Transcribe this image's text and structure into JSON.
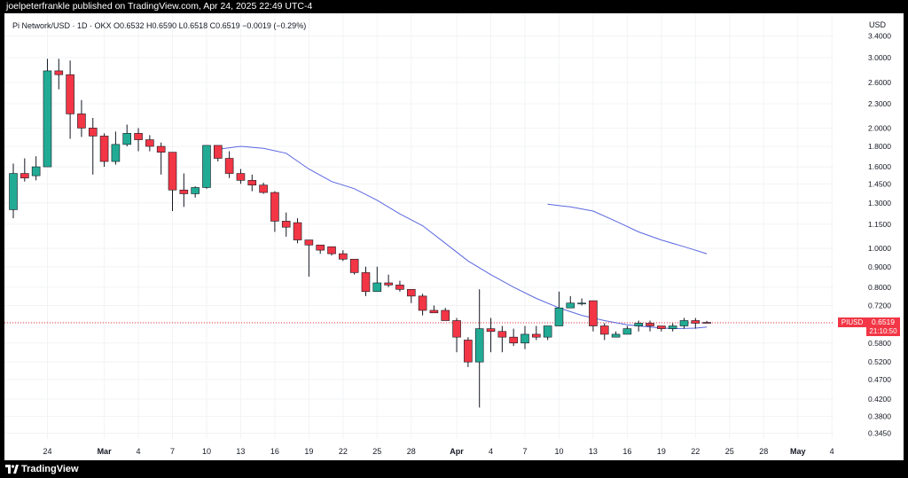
{
  "header": {
    "publisher_text": "joelpeterfrankle published on TradingView.com, Apr 24, 2025 22:49 UTC-4"
  },
  "footer": {
    "brand": "TradingView",
    "logo_icon": "tradingview-logo-icon"
  },
  "legend": {
    "text": "Pi Network/USD · 1D · OKX  O0.6532  H0.6590  L0.6518  C0.6519  −0.0019 (−0.29%)"
  },
  "price_axis": {
    "currency": "USD"
  },
  "badge": {
    "symbol": "PIUSD",
    "price": "0.6519",
    "countdown": "21:10:50"
  },
  "colors": {
    "up": "#22ab94",
    "down": "#f23645",
    "ma_line": "#5b67e0",
    "wick": "#131722"
  },
  "chart_data": {
    "type": "candlestick",
    "scale": "log",
    "ylim": [
      0.33,
      3.6
    ],
    "y_ticks": [
      "3.4000",
      "3.0000",
      "2.6000",
      "2.3000",
      "2.0000",
      "1.8000",
      "1.6000",
      "1.4500",
      "1.3000",
      "1.1500",
      "1.0000",
      "0.9000",
      "0.8000",
      "0.7200",
      "0.6500",
      "0.5800",
      "0.5200",
      "0.4700",
      "0.4200",
      "0.3800",
      "0.3450"
    ],
    "x_ticks": [
      "24",
      "Mar",
      "4",
      "7",
      "10",
      "13",
      "16",
      "19",
      "22",
      "25",
      "28",
      "Apr",
      "4",
      "7",
      "10",
      "13",
      "16",
      "19",
      "22",
      "25",
      "28",
      "May",
      "4"
    ],
    "start_date": "2025-02-21",
    "end_date": "2025-05-05",
    "candles": [
      {
        "date": "2025-02-21",
        "o": 1.25,
        "h": 1.63,
        "l": 1.19,
        "c": 1.54
      },
      {
        "date": "2025-02-22",
        "o": 1.54,
        "h": 1.68,
        "l": 1.47,
        "c": 1.5
      },
      {
        "date": "2025-02-23",
        "o": 1.52,
        "h": 1.7,
        "l": 1.48,
        "c": 1.6
      },
      {
        "date": "2025-02-24",
        "o": 1.6,
        "h": 2.98,
        "l": 1.6,
        "c": 2.78
      },
      {
        "date": "2025-02-25",
        "o": 2.78,
        "h": 2.98,
        "l": 2.5,
        "c": 2.72
      },
      {
        "date": "2025-02-26",
        "o": 2.72,
        "h": 2.95,
        "l": 1.88,
        "c": 2.17
      },
      {
        "date": "2025-02-27",
        "o": 2.17,
        "h": 2.35,
        "l": 1.9,
        "c": 2.0
      },
      {
        "date": "2025-02-28",
        "o": 2.0,
        "h": 2.12,
        "l": 1.53,
        "c": 1.91
      },
      {
        "date": "2025-03-01",
        "o": 1.91,
        "h": 1.94,
        "l": 1.6,
        "c": 1.65
      },
      {
        "date": "2025-03-02",
        "o": 1.65,
        "h": 1.96,
        "l": 1.62,
        "c": 1.82
      },
      {
        "date": "2025-03-03",
        "o": 1.82,
        "h": 2.04,
        "l": 1.8,
        "c": 1.94
      },
      {
        "date": "2025-03-04",
        "o": 1.94,
        "h": 2.0,
        "l": 1.75,
        "c": 1.87
      },
      {
        "date": "2025-03-05",
        "o": 1.87,
        "h": 1.92,
        "l": 1.75,
        "c": 1.8
      },
      {
        "date": "2025-03-06",
        "o": 1.8,
        "h": 1.84,
        "l": 1.53,
        "c": 1.74
      },
      {
        "date": "2025-03-07",
        "o": 1.74,
        "h": 1.74,
        "l": 1.24,
        "c": 1.4
      },
      {
        "date": "2025-03-08",
        "o": 1.4,
        "h": 1.54,
        "l": 1.27,
        "c": 1.37
      },
      {
        "date": "2025-03-09",
        "o": 1.37,
        "h": 1.43,
        "l": 1.34,
        "c": 1.42
      },
      {
        "date": "2025-03-10",
        "o": 1.42,
        "h": 1.81,
        "l": 1.41,
        "c": 1.81
      },
      {
        "date": "2025-03-11",
        "o": 1.81,
        "h": 1.81,
        "l": 1.65,
        "c": 1.68
      },
      {
        "date": "2025-03-12",
        "o": 1.68,
        "h": 1.75,
        "l": 1.5,
        "c": 1.54
      },
      {
        "date": "2025-03-13",
        "o": 1.54,
        "h": 1.58,
        "l": 1.45,
        "c": 1.48
      },
      {
        "date": "2025-03-14",
        "o": 1.48,
        "h": 1.53,
        "l": 1.39,
        "c": 1.44
      },
      {
        "date": "2025-03-15",
        "o": 1.44,
        "h": 1.46,
        "l": 1.37,
        "c": 1.38
      },
      {
        "date": "2025-03-16",
        "o": 1.38,
        "h": 1.39,
        "l": 1.1,
        "c": 1.17
      },
      {
        "date": "2025-03-17",
        "o": 1.17,
        "h": 1.23,
        "l": 1.07,
        "c": 1.13
      },
      {
        "date": "2025-03-18",
        "o": 1.16,
        "h": 1.19,
        "l": 1.03,
        "c": 1.05
      },
      {
        "date": "2025-03-19",
        "o": 1.05,
        "h": 1.05,
        "l": 0.85,
        "c": 1.02
      },
      {
        "date": "2025-03-20",
        "o": 1.02,
        "h": 1.02,
        "l": 0.97,
        "c": 0.99
      },
      {
        "date": "2025-03-21",
        "o": 1.01,
        "h": 1.01,
        "l": 0.96,
        "c": 0.97
      },
      {
        "date": "2025-03-22",
        "o": 0.97,
        "h": 0.99,
        "l": 0.93,
        "c": 0.94
      },
      {
        "date": "2025-03-23",
        "o": 0.94,
        "h": 0.94,
        "l": 0.86,
        "c": 0.87
      },
      {
        "date": "2025-03-24",
        "o": 0.87,
        "h": 0.9,
        "l": 0.76,
        "c": 0.78
      },
      {
        "date": "2025-03-25",
        "o": 0.78,
        "h": 0.9,
        "l": 0.78,
        "c": 0.82
      },
      {
        "date": "2025-03-26",
        "o": 0.82,
        "h": 0.86,
        "l": 0.8,
        "c": 0.81
      },
      {
        "date": "2025-03-27",
        "o": 0.81,
        "h": 0.83,
        "l": 0.78,
        "c": 0.79
      },
      {
        "date": "2025-03-28",
        "o": 0.79,
        "h": 0.79,
        "l": 0.73,
        "c": 0.76
      },
      {
        "date": "2025-03-29",
        "o": 0.76,
        "h": 0.77,
        "l": 0.68,
        "c": 0.7
      },
      {
        "date": "2025-03-30",
        "o": 0.7,
        "h": 0.72,
        "l": 0.69,
        "c": 0.69
      },
      {
        "date": "2025-03-31",
        "o": 0.7,
        "h": 0.71,
        "l": 0.66,
        "c": 0.66
      },
      {
        "date": "2025-04-01",
        "o": 0.66,
        "h": 0.67,
        "l": 0.55,
        "c": 0.6
      },
      {
        "date": "2025-04-02",
        "o": 0.59,
        "h": 0.6,
        "l": 0.505,
        "c": 0.52
      },
      {
        "date": "2025-04-03",
        "o": 0.52,
        "h": 0.79,
        "l": 0.4,
        "c": 0.63
      },
      {
        "date": "2025-04-04",
        "o": 0.63,
        "h": 0.67,
        "l": 0.55,
        "c": 0.62
      },
      {
        "date": "2025-04-05",
        "o": 0.62,
        "h": 0.64,
        "l": 0.55,
        "c": 0.6
      },
      {
        "date": "2025-04-06",
        "o": 0.6,
        "h": 0.63,
        "l": 0.57,
        "c": 0.58
      },
      {
        "date": "2025-04-07",
        "o": 0.58,
        "h": 0.64,
        "l": 0.56,
        "c": 0.61
      },
      {
        "date": "2025-04-08",
        "o": 0.61,
        "h": 0.64,
        "l": 0.59,
        "c": 0.6
      },
      {
        "date": "2025-04-09",
        "o": 0.6,
        "h": 0.64,
        "l": 0.59,
        "c": 0.64
      },
      {
        "date": "2025-04-10",
        "o": 0.64,
        "h": 0.78,
        "l": 0.64,
        "c": 0.71
      },
      {
        "date": "2025-04-11",
        "o": 0.71,
        "h": 0.76,
        "l": 0.71,
        "c": 0.73
      },
      {
        "date": "2025-04-12",
        "o": 0.73,
        "h": 0.75,
        "l": 0.72,
        "c": 0.73
      },
      {
        "date": "2025-04-13",
        "o": 0.74,
        "h": 0.74,
        "l": 0.62,
        "c": 0.64
      },
      {
        "date": "2025-04-14",
        "o": 0.64,
        "h": 0.65,
        "l": 0.59,
        "c": 0.61
      },
      {
        "date": "2025-04-15",
        "o": 0.6,
        "h": 0.62,
        "l": 0.6,
        "c": 0.61
      },
      {
        "date": "2025-04-16",
        "o": 0.61,
        "h": 0.64,
        "l": 0.61,
        "c": 0.63
      },
      {
        "date": "2025-04-17",
        "o": 0.64,
        "h": 0.66,
        "l": 0.62,
        "c": 0.65
      },
      {
        "date": "2025-04-18",
        "o": 0.65,
        "h": 0.66,
        "l": 0.62,
        "c": 0.64
      },
      {
        "date": "2025-04-19",
        "o": 0.64,
        "h": 0.64,
        "l": 0.62,
        "c": 0.63
      },
      {
        "date": "2025-04-20",
        "o": 0.63,
        "h": 0.65,
        "l": 0.62,
        "c": 0.64
      },
      {
        "date": "2025-04-21",
        "o": 0.64,
        "h": 0.67,
        "l": 0.63,
        "c": 0.66
      },
      {
        "date": "2025-04-22",
        "o": 0.66,
        "h": 0.67,
        "l": 0.63,
        "c": 0.65
      },
      {
        "date": "2025-04-23",
        "o": 0.6532,
        "h": 0.659,
        "l": 0.6518,
        "c": 0.6519
      }
    ],
    "ma_series": [
      {
        "date": "2025-03-11",
        "v": 1.77
      },
      {
        "date": "2025-03-13",
        "v": 1.8
      },
      {
        "date": "2025-03-15",
        "v": 1.78
      },
      {
        "date": "2025-03-17",
        "v": 1.73
      },
      {
        "date": "2025-03-19",
        "v": 1.58
      },
      {
        "date": "2025-03-21",
        "v": 1.47
      },
      {
        "date": "2025-03-23",
        "v": 1.41
      },
      {
        "date": "2025-03-25",
        "v": 1.32
      },
      {
        "date": "2025-03-27",
        "v": 1.22
      },
      {
        "date": "2025-03-29",
        "v": 1.14
      },
      {
        "date": "2025-03-31",
        "v": 1.03
      },
      {
        "date": "2025-04-02",
        "v": 0.93
      },
      {
        "date": "2025-04-04",
        "v": 0.86
      },
      {
        "date": "2025-04-06",
        "v": 0.8
      },
      {
        "date": "2025-04-08",
        "v": 0.75
      },
      {
        "date": "2025-04-10",
        "v": 0.71
      },
      {
        "date": "2025-04-12",
        "v": 0.68
      },
      {
        "date": "2025-04-14",
        "v": 0.66
      },
      {
        "date": "2025-04-16",
        "v": 0.644
      },
      {
        "date": "2025-04-18",
        "v": 0.636
      },
      {
        "date": "2025-04-20",
        "v": 0.63
      },
      {
        "date": "2025-04-22",
        "v": 0.632
      },
      {
        "date": "2025-04-23",
        "v": 0.636
      }
    ],
    "ma_long_series": [
      {
        "date": "2025-04-09",
        "v": 1.29
      },
      {
        "date": "2025-04-11",
        "v": 1.27
      },
      {
        "date": "2025-04-13",
        "v": 1.24
      },
      {
        "date": "2025-04-15",
        "v": 1.17
      },
      {
        "date": "2025-04-17",
        "v": 1.1
      },
      {
        "date": "2025-04-19",
        "v": 1.05
      },
      {
        "date": "2025-04-21",
        "v": 1.01
      },
      {
        "date": "2025-04-23",
        "v": 0.97
      }
    ]
  }
}
